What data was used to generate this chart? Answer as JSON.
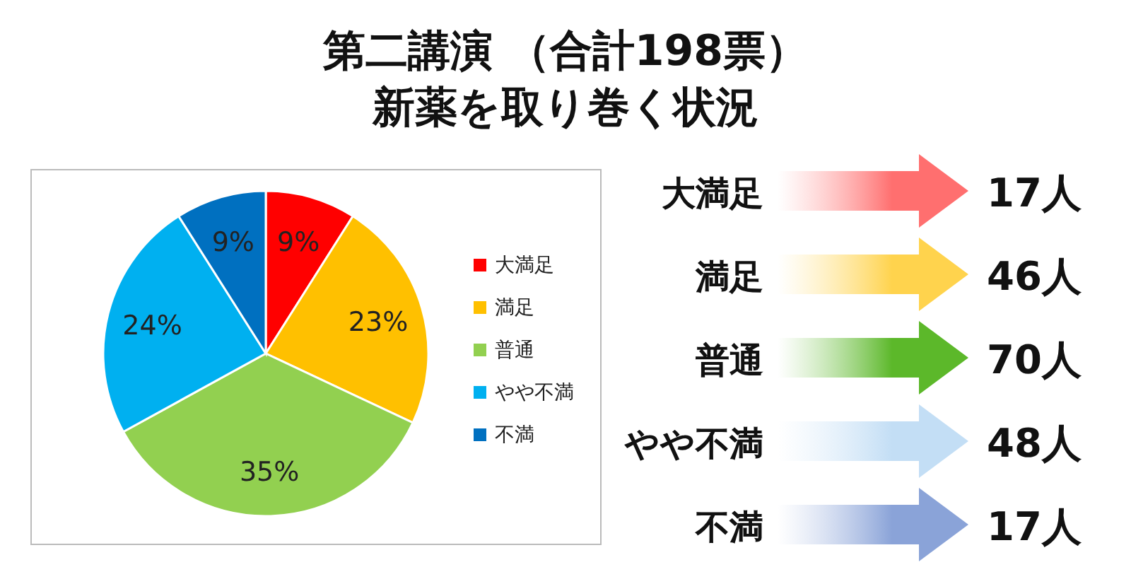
{
  "chart_data": [
    {
      "type": "pie",
      "title": "第二講演 （合計198票）",
      "subtitle": "新薬を取り巻く状況",
      "categories": [
        "大満足",
        "満足",
        "普通",
        "やや不満",
        "不満"
      ],
      "values": [
        9,
        23,
        35,
        24,
        9
      ],
      "value_labels": [
        "9%",
        "23%",
        "35%",
        "24%",
        "9%"
      ],
      "colors": [
        "#ff0000",
        "#ffc000",
        "#92d050",
        "#00b0f0",
        "#0070c0"
      ],
      "legend": "right"
    },
    {
      "type": "other",
      "categories": [
        "大満足",
        "満足",
        "普通",
        "やや不満",
        "不満"
      ],
      "value_labels": [
        "17人",
        "46人",
        "70人",
        "48人",
        "17人"
      ],
      "colors": [
        "#ff6f6f",
        "#ffd34d",
        "#5cb82a",
        "#c3def5",
        "#8aa3d8"
      ]
    }
  ]
}
